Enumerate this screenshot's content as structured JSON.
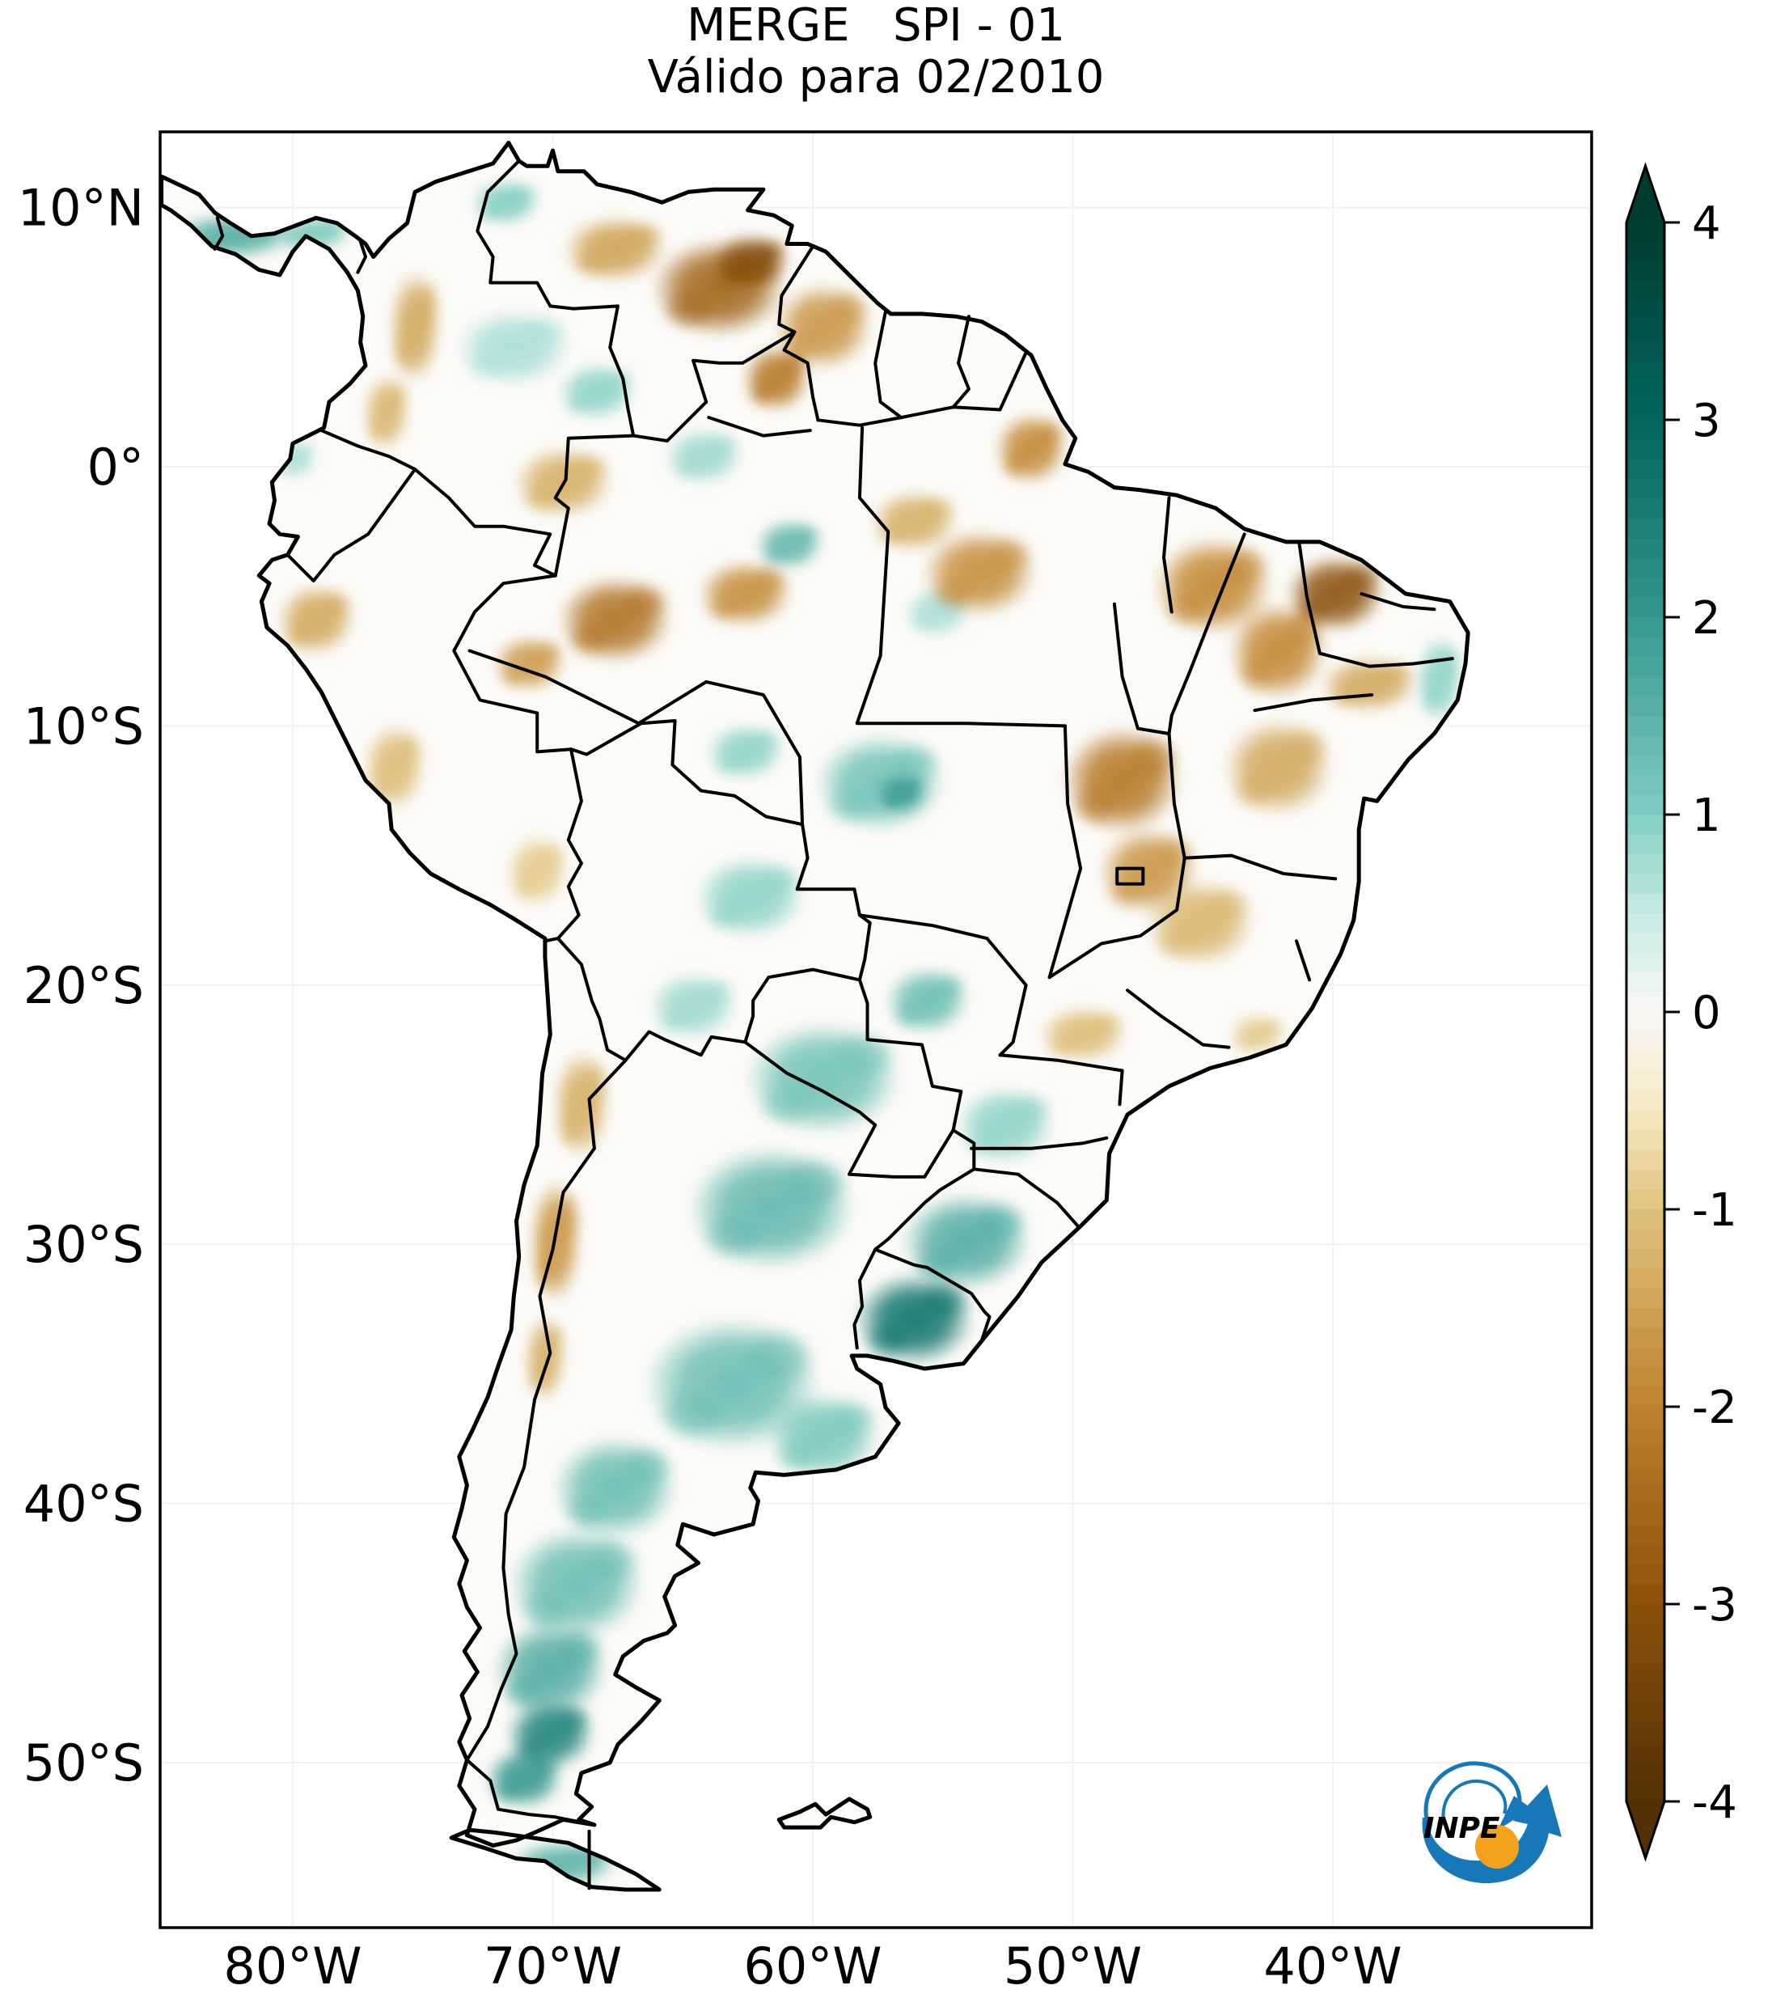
{
  "figure": {
    "title": "MERGE   SPI - 01",
    "subtitle": "Válido para 02/2010"
  },
  "logo": {
    "text": "INPE",
    "blue": "#1678b8",
    "orange": "#f4a11d"
  },
  "chart_data": {
    "type": "heatmap",
    "title": "MERGE   SPI - 01",
    "subtitle": "Válido para 02/2010",
    "region": "South America",
    "variable": "SPI-01 (1-month Standardized Precipitation Index)",
    "valid_for": "02/2010",
    "grid": true,
    "lon_range": [
      -85.1,
      -30.0
    ],
    "lat_range": [
      -56.3,
      12.9
    ],
    "x_ticks": [
      {
        "label": "80°W",
        "lon": -80
      },
      {
        "label": "70°W",
        "lon": -70
      },
      {
        "label": "60°W",
        "lon": -60
      },
      {
        "label": "50°W",
        "lon": -50
      },
      {
        "label": "40°W",
        "lon": -40
      }
    ],
    "y_ticks": [
      {
        "label": "10°N",
        "lat": 10
      },
      {
        "label": "0°",
        "lat": 0
      },
      {
        "label": "10°S",
        "lat": -10
      },
      {
        "label": "20°S",
        "lat": -20
      },
      {
        "label": "30°S",
        "lat": -30
      },
      {
        "label": "40°S",
        "lat": -40
      },
      {
        "label": "50°S",
        "lat": -50
      }
    ],
    "colorbar": {
      "min": -4,
      "max": 4,
      "extend": "both",
      "tick_labels": [
        "4",
        "3",
        "2",
        "1",
        "0",
        "-1",
        "-2",
        "-3",
        "-4"
      ],
      "tick_values": [
        4,
        3,
        2,
        1,
        0,
        -1,
        -2,
        -3,
        -4
      ],
      "stops": [
        {
          "value": -4,
          "color": "#543005"
        },
        {
          "value": -3,
          "color": "#8c510a"
        },
        {
          "value": -2,
          "color": "#bf812d"
        },
        {
          "value": -1,
          "color": "#dfc27d"
        },
        {
          "value": -0.5,
          "color": "#f6e8c3"
        },
        {
          "value": 0,
          "color": "#f9f8f5"
        },
        {
          "value": 0.5,
          "color": "#c7eae5"
        },
        {
          "value": 1,
          "color": "#80cdc1"
        },
        {
          "value": 2,
          "color": "#35978f"
        },
        {
          "value": 3,
          "color": "#01665e"
        },
        {
          "value": 4,
          "color": "#003c30"
        }
      ]
    },
    "spi_field": [
      {
        "name": "panama-costa-rica-coast",
        "lon": -82.3,
        "lat": 8.9,
        "rx": 2.4,
        "ry": 0.9,
        "spi": 1.6
      },
      {
        "name": "panama-east",
        "lon": -79.2,
        "lat": 9.0,
        "rx": 1.5,
        "ry": 0.7,
        "spi": 1.1
      },
      {
        "name": "maracaibo",
        "lon": -71.8,
        "lat": 10.2,
        "rx": 1.3,
        "ry": 0.9,
        "spi": 1.0
      },
      {
        "name": "colombia-llanos",
        "lon": -71.5,
        "lat": 4.6,
        "rx": 2.2,
        "ry": 1.5,
        "spi": 0.7
      },
      {
        "name": "guainia",
        "lon": -68.3,
        "lat": 2.9,
        "rx": 1.5,
        "ry": 1.1,
        "spi": 0.9
      },
      {
        "name": "amazon-north",
        "lon": -64.2,
        "lat": 0.4,
        "rx": 1.5,
        "ry": 1.1,
        "spi": 0.8
      },
      {
        "name": "manaus-south",
        "lon": -60.9,
        "lat": -3.0,
        "rx": 1.3,
        "ry": 1.0,
        "spi": 1.4
      },
      {
        "name": "amazon-east",
        "lon": -55.2,
        "lat": -5.6,
        "rx": 1.3,
        "ry": 1.0,
        "spi": 0.7
      },
      {
        "name": "ne-coast",
        "lon": -35.9,
        "lat": -8.2,
        "rx": 0.9,
        "ry": 1.7,
        "spi": 0.9
      },
      {
        "name": "rondonia",
        "lon": -62.6,
        "lat": -11.0,
        "rx": 1.5,
        "ry": 1.1,
        "spi": 0.9
      },
      {
        "name": "mato-grosso",
        "lon": -57.4,
        "lat": -12.2,
        "rx": 2.5,
        "ry": 1.9,
        "spi": 1.2
      },
      {
        "name": "mato-grosso-core",
        "lon": -56.6,
        "lat": -12.6,
        "rx": 1.0,
        "ry": 0.8,
        "spi": 1.9
      },
      {
        "name": "bolivia-east",
        "lon": -62.4,
        "lat": -16.6,
        "rx": 2.1,
        "ry": 1.6,
        "spi": 0.9
      },
      {
        "name": "bolivia-south",
        "lon": -64.6,
        "lat": -20.8,
        "rx": 1.7,
        "ry": 1.3,
        "spi": 0.8
      },
      {
        "name": "mato-grosso-do-sul",
        "lon": -55.6,
        "lat": -20.6,
        "rx": 1.6,
        "ry": 1.3,
        "spi": 1.3
      },
      {
        "name": "paraguay",
        "lon": -59.6,
        "lat": -23.6,
        "rx": 3.0,
        "ry": 2.2,
        "spi": 1.2
      },
      {
        "name": "parana-state",
        "lon": -52.6,
        "lat": -25.4,
        "rx": 1.9,
        "ry": 1.5,
        "spi": 0.9
      },
      {
        "name": "ne-argentina",
        "lon": -61.6,
        "lat": -28.6,
        "rx": 3.2,
        "ry": 2.4,
        "spi": 1.4
      },
      {
        "name": "rio-grande-do-sul",
        "lon": -54.1,
        "lat": -29.9,
        "rx": 2.5,
        "ry": 1.9,
        "spi": 1.6
      },
      {
        "name": "uruguay",
        "lon": -56.1,
        "lat": -32.9,
        "rx": 2.3,
        "ry": 1.8,
        "spi": 2.7
      },
      {
        "name": "pampas",
        "lon": -63.1,
        "lat": -35.4,
        "rx": 3.4,
        "ry": 2.6,
        "spi": 1.3
      },
      {
        "name": "buenos-aires-south",
        "lon": -59.6,
        "lat": -37.4,
        "rx": 2.2,
        "ry": 1.7,
        "spi": 1.1
      },
      {
        "name": "neuquen",
        "lon": -67.6,
        "lat": -39.4,
        "rx": 2.4,
        "ry": 2.0,
        "spi": 1.3
      },
      {
        "name": "patagonia-north",
        "lon": -69.1,
        "lat": -43.1,
        "rx": 2.6,
        "ry": 2.2,
        "spi": 1.3
      },
      {
        "name": "patagonia-mid",
        "lon": -70.1,
        "lat": -46.4,
        "rx": 2.2,
        "ry": 1.9,
        "spi": 1.6
      },
      {
        "name": "patagonia-south",
        "lon": -70.1,
        "lat": -48.9,
        "rx": 1.7,
        "ry": 1.4,
        "spi": 2.4
      },
      {
        "name": "santa-cruz",
        "lon": -71.1,
        "lat": -50.6,
        "rx": 1.5,
        "ry": 1.2,
        "spi": 2.0
      },
      {
        "name": "tierra-del-fuego",
        "lon": -69.6,
        "lat": -53.9,
        "rx": 2.1,
        "ry": 0.9,
        "spi": 1.5
      },
      {
        "name": "ecuador-coast",
        "lon": -79.9,
        "lat": 0.3,
        "rx": 0.8,
        "ry": 0.8,
        "spi": 0.7
      },
      {
        "name": "venezuela-east",
        "lon": -63.6,
        "lat": 6.9,
        "rx": 2.6,
        "ry": 1.9,
        "spi": -2.6
      },
      {
        "name": "venezuela-core",
        "lon": -62.4,
        "lat": 7.9,
        "rx": 1.5,
        "ry": 1.1,
        "spi": -3.1
      },
      {
        "name": "venezuela-west",
        "lon": -67.6,
        "lat": 8.4,
        "rx": 2.0,
        "ry": 1.3,
        "spi": -1.5
      },
      {
        "name": "guyana",
        "lon": -59.6,
        "lat": 5.4,
        "rx": 1.9,
        "ry": 1.7,
        "spi": -1.7
      },
      {
        "name": "roraima-north",
        "lon": -61.4,
        "lat": 3.4,
        "rx": 1.3,
        "ry": 1.3,
        "spi": -2.2
      },
      {
        "name": "colombia-andes",
        "lon": -75.3,
        "lat": 5.4,
        "rx": 1.0,
        "ry": 2.2,
        "spi": -1.4
      },
      {
        "name": "colombia-south",
        "lon": -76.4,
        "lat": 2.1,
        "rx": 0.9,
        "ry": 1.5,
        "spi": -1.2
      },
      {
        "name": "rio-negro",
        "lon": -69.6,
        "lat": -0.6,
        "rx": 1.9,
        "ry": 1.4,
        "spi": -1.3
      },
      {
        "name": "amazonas-west",
        "lon": -67.6,
        "lat": -5.9,
        "rx": 2.2,
        "ry": 1.7,
        "spi": -2.3
      },
      {
        "name": "jurua",
        "lon": -70.9,
        "lat": -7.6,
        "rx": 1.4,
        "ry": 1.1,
        "spi": -1.6
      },
      {
        "name": "amazon-central",
        "lon": -62.6,
        "lat": -4.9,
        "rx": 1.8,
        "ry": 1.3,
        "spi": -1.8
      },
      {
        "name": "para-west",
        "lon": -56.1,
        "lat": -2.1,
        "rx": 1.7,
        "ry": 1.2,
        "spi": -1.3
      },
      {
        "name": "para",
        "lon": -53.6,
        "lat": -4.1,
        "rx": 2.2,
        "ry": 1.7,
        "spi": -1.8
      },
      {
        "name": "amapa",
        "lon": -51.6,
        "lat": 0.7,
        "rx": 1.4,
        "ry": 1.4,
        "spi": -1.9
      },
      {
        "name": "maranhao",
        "lon": -44.6,
        "lat": -4.6,
        "rx": 2.3,
        "ry": 1.9,
        "spi": -1.9
      },
      {
        "name": "ceara",
        "lon": -39.9,
        "lat": -4.9,
        "rx": 1.9,
        "ry": 1.5,
        "spi": -3.0
      },
      {
        "name": "piaui",
        "lon": -42.1,
        "lat": -7.1,
        "rx": 1.9,
        "ry": 1.9,
        "spi": -1.9
      },
      {
        "name": "pernambuco-interior",
        "lon": -38.6,
        "lat": -8.4,
        "rx": 1.9,
        "ry": 1.1,
        "spi": -1.4
      },
      {
        "name": "bahia",
        "lon": -42.1,
        "lat": -11.6,
        "rx": 2.1,
        "ry": 1.9,
        "spi": -1.4
      },
      {
        "name": "tocantins",
        "lon": -48.1,
        "lat": -12.1,
        "rx": 2.3,
        "ry": 2.1,
        "spi": -2.2
      },
      {
        "name": "goias",
        "lon": -47.1,
        "lat": -15.6,
        "rx": 1.9,
        "ry": 1.7,
        "spi": -1.7
      },
      {
        "name": "minas-gerais",
        "lon": -45.1,
        "lat": -17.6,
        "rx": 2.1,
        "ry": 1.7,
        "spi": -1.2
      },
      {
        "name": "sao-paulo",
        "lon": -49.6,
        "lat": -21.9,
        "rx": 1.7,
        "ry": 1.1,
        "spi": -1.1
      },
      {
        "name": "rio-interior",
        "lon": -42.9,
        "lat": -21.9,
        "rx": 1.1,
        "ry": 0.8,
        "spi": -0.9
      },
      {
        "name": "peru-north",
        "lon": -79.1,
        "lat": -5.9,
        "rx": 1.5,
        "ry": 1.4,
        "spi": -1.4
      },
      {
        "name": "peru-coast",
        "lon": -76.1,
        "lat": -11.6,
        "rx": 1.2,
        "ry": 1.7,
        "spi": -1.1
      },
      {
        "name": "altiplano",
        "lon": -70.6,
        "lat": -15.6,
        "rx": 1.2,
        "ry": 1.4,
        "spi": -0.9
      },
      {
        "name": "andes-north",
        "lon": -68.9,
        "lat": -24.6,
        "rx": 1.1,
        "ry": 2.1,
        "spi": -1.3
      },
      {
        "name": "andes-central",
        "lon": -69.9,
        "lat": -29.9,
        "rx": 1.0,
        "ry": 2.4,
        "spi": -1.7
      },
      {
        "name": "andes-south",
        "lon": -70.3,
        "lat": -34.4,
        "rx": 0.8,
        "ry": 1.7,
        "spi": -1.3
      }
    ]
  }
}
